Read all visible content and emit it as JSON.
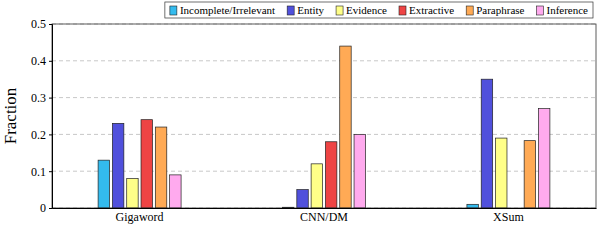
{
  "chart_data": {
    "type": "bar",
    "y_label": "Fraction",
    "categories": [
      "Gigaword",
      "CNN/DM",
      "XSum"
    ],
    "series": [
      {
        "name": "Incomplete/Irrelevant",
        "color": "#33bbee",
        "values": [
          0.13,
          0.002,
          0.01
        ]
      },
      {
        "name": "Entity",
        "color": "#5050dc",
        "values": [
          0.23,
          0.05,
          0.35
        ]
      },
      {
        "name": "Evidence",
        "color": "#ffff88",
        "values": [
          0.08,
          0.12,
          0.19
        ]
      },
      {
        "name": "Extractive",
        "color": "#ee4444",
        "values": [
          0.24,
          0.18,
          0
        ]
      },
      {
        "name": "Paraphrase",
        "color": "#ffaa55",
        "values": [
          0.22,
          0.44,
          0.183
        ]
      },
      {
        "name": "Inference",
        "color": "#ffaaee",
        "values": [
          0.09,
          0.2,
          0.27
        ]
      }
    ],
    "ylim": [
      0,
      0.5
    ],
    "yticks": [
      0,
      0.1,
      0.2,
      0.3,
      0.4,
      0.5
    ],
    "grid": true,
    "legend": "top"
  }
}
